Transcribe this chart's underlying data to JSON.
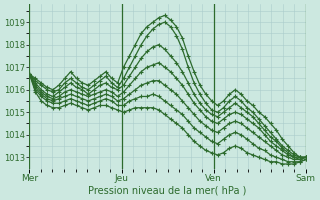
{
  "background_color": "#cce8e0",
  "plot_bg_color": "#cce8e0",
  "grid_color": "#aacccc",
  "line_color": "#2d6b2d",
  "xlabel": "Pression niveau de la mer( hPa )",
  "xlabel_color": "#2d6b2d",
  "tick_color": "#2d6b2d",
  "day_labels": [
    "Mer",
    "Jeu",
    "Ven",
    "Sam"
  ],
  "day_positions": [
    0,
    48,
    96,
    144
  ],
  "vline_positions": [
    0,
    48,
    96,
    144
  ],
  "ylim": [
    1012.5,
    1019.8
  ],
  "yticks": [
    1013,
    1014,
    1015,
    1016,
    1017,
    1018,
    1019
  ],
  "figsize": [
    3.2,
    2.0
  ],
  "dpi": 100,
  "lines": [
    [
      1016.7,
      1016.5,
      1016.3,
      1016.1,
      1016.0,
      1016.2,
      1016.5,
      1016.8,
      1016.5,
      1016.3,
      1016.2,
      1016.4,
      1016.6,
      1016.8,
      1016.5,
      1016.3,
      1017.0,
      1017.5,
      1018.0,
      1018.5,
      1018.8,
      1019.0,
      1019.2,
      1019.3,
      1019.1,
      1018.8,
      1018.3,
      1017.5,
      1016.8,
      1016.2,
      1015.8,
      1015.5,
      1015.3,
      1015.5,
      1015.8,
      1016.0,
      1015.8,
      1015.5,
      1015.3,
      1015.0,
      1014.8,
      1014.5,
      1014.2,
      1013.8,
      1013.5,
      1013.2,
      1013.0,
      1013.0
    ],
    [
      1016.7,
      1016.4,
      1016.2,
      1016.0,
      1015.9,
      1016.0,
      1016.3,
      1016.5,
      1016.3,
      1016.1,
      1016.0,
      1016.2,
      1016.4,
      1016.6,
      1016.3,
      1016.1,
      1016.5,
      1017.0,
      1017.5,
      1018.0,
      1018.4,
      1018.7,
      1018.9,
      1019.0,
      1018.8,
      1018.4,
      1017.8,
      1017.0,
      1016.3,
      1015.8,
      1015.4,
      1015.1,
      1015.0,
      1015.2,
      1015.5,
      1015.7,
      1015.5,
      1015.2,
      1015.0,
      1014.7,
      1014.4,
      1014.1,
      1013.8,
      1013.5,
      1013.3,
      1013.1,
      1013.0,
      1013.0
    ],
    [
      1016.7,
      1016.3,
      1016.0,
      1015.8,
      1015.7,
      1015.9,
      1016.1,
      1016.3,
      1016.1,
      1016.0,
      1015.8,
      1016.0,
      1016.2,
      1016.3,
      1016.1,
      1016.0,
      1016.2,
      1016.6,
      1017.0,
      1017.4,
      1017.7,
      1017.9,
      1018.0,
      1017.8,
      1017.5,
      1017.2,
      1016.8,
      1016.3,
      1015.8,
      1015.4,
      1015.1,
      1014.9,
      1014.8,
      1015.0,
      1015.2,
      1015.4,
      1015.2,
      1015.0,
      1014.8,
      1014.5,
      1014.2,
      1013.9,
      1013.7,
      1013.4,
      1013.2,
      1013.0,
      1013.0,
      1013.0
    ],
    [
      1016.7,
      1016.2,
      1015.9,
      1015.7,
      1015.6,
      1015.7,
      1015.9,
      1016.0,
      1015.9,
      1015.8,
      1015.7,
      1015.8,
      1015.9,
      1016.0,
      1015.9,
      1015.7,
      1015.9,
      1016.2,
      1016.5,
      1016.8,
      1017.0,
      1017.1,
      1017.2,
      1017.0,
      1016.8,
      1016.5,
      1016.2,
      1015.8,
      1015.4,
      1015.1,
      1014.8,
      1014.6,
      1014.5,
      1014.7,
      1014.9,
      1015.0,
      1014.9,
      1014.7,
      1014.5,
      1014.3,
      1014.0,
      1013.7,
      1013.5,
      1013.3,
      1013.1,
      1013.0,
      1012.9,
      1013.0
    ],
    [
      1016.7,
      1016.1,
      1015.8,
      1015.6,
      1015.5,
      1015.6,
      1015.7,
      1015.8,
      1015.7,
      1015.6,
      1015.5,
      1015.6,
      1015.7,
      1015.8,
      1015.7,
      1015.5,
      1015.6,
      1015.8,
      1016.0,
      1016.2,
      1016.3,
      1016.4,
      1016.4,
      1016.2,
      1016.0,
      1015.8,
      1015.5,
      1015.2,
      1014.9,
      1014.6,
      1014.4,
      1014.2,
      1014.1,
      1014.3,
      1014.5,
      1014.6,
      1014.5,
      1014.3,
      1014.1,
      1013.9,
      1013.7,
      1013.5,
      1013.3,
      1013.1,
      1013.0,
      1012.9,
      1012.9,
      1013.0
    ],
    [
      1016.7,
      1016.0,
      1015.7,
      1015.5,
      1015.4,
      1015.4,
      1015.5,
      1015.6,
      1015.5,
      1015.4,
      1015.3,
      1015.4,
      1015.5,
      1015.6,
      1015.5,
      1015.3,
      1015.3,
      1015.5,
      1015.6,
      1015.7,
      1015.7,
      1015.8,
      1015.7,
      1015.5,
      1015.3,
      1015.1,
      1014.9,
      1014.6,
      1014.3,
      1014.1,
      1013.9,
      1013.7,
      1013.6,
      1013.8,
      1014.0,
      1014.1,
      1014.0,
      1013.8,
      1013.6,
      1013.4,
      1013.3,
      1013.1,
      1013.0,
      1012.9,
      1012.8,
      1012.8,
      1012.8,
      1012.9
    ],
    [
      1016.7,
      1015.9,
      1015.5,
      1015.3,
      1015.2,
      1015.2,
      1015.3,
      1015.4,
      1015.3,
      1015.2,
      1015.1,
      1015.2,
      1015.3,
      1015.3,
      1015.2,
      1015.1,
      1015.0,
      1015.1,
      1015.2,
      1015.2,
      1015.2,
      1015.2,
      1015.1,
      1014.9,
      1014.7,
      1014.5,
      1014.3,
      1014.0,
      1013.7,
      1013.5,
      1013.3,
      1013.2,
      1013.1,
      1013.2,
      1013.4,
      1013.5,
      1013.4,
      1013.2,
      1013.1,
      1013.0,
      1012.9,
      1012.8,
      1012.8,
      1012.7,
      1012.7,
      1012.7,
      1012.8,
      1012.9
    ]
  ],
  "n_points": 48
}
